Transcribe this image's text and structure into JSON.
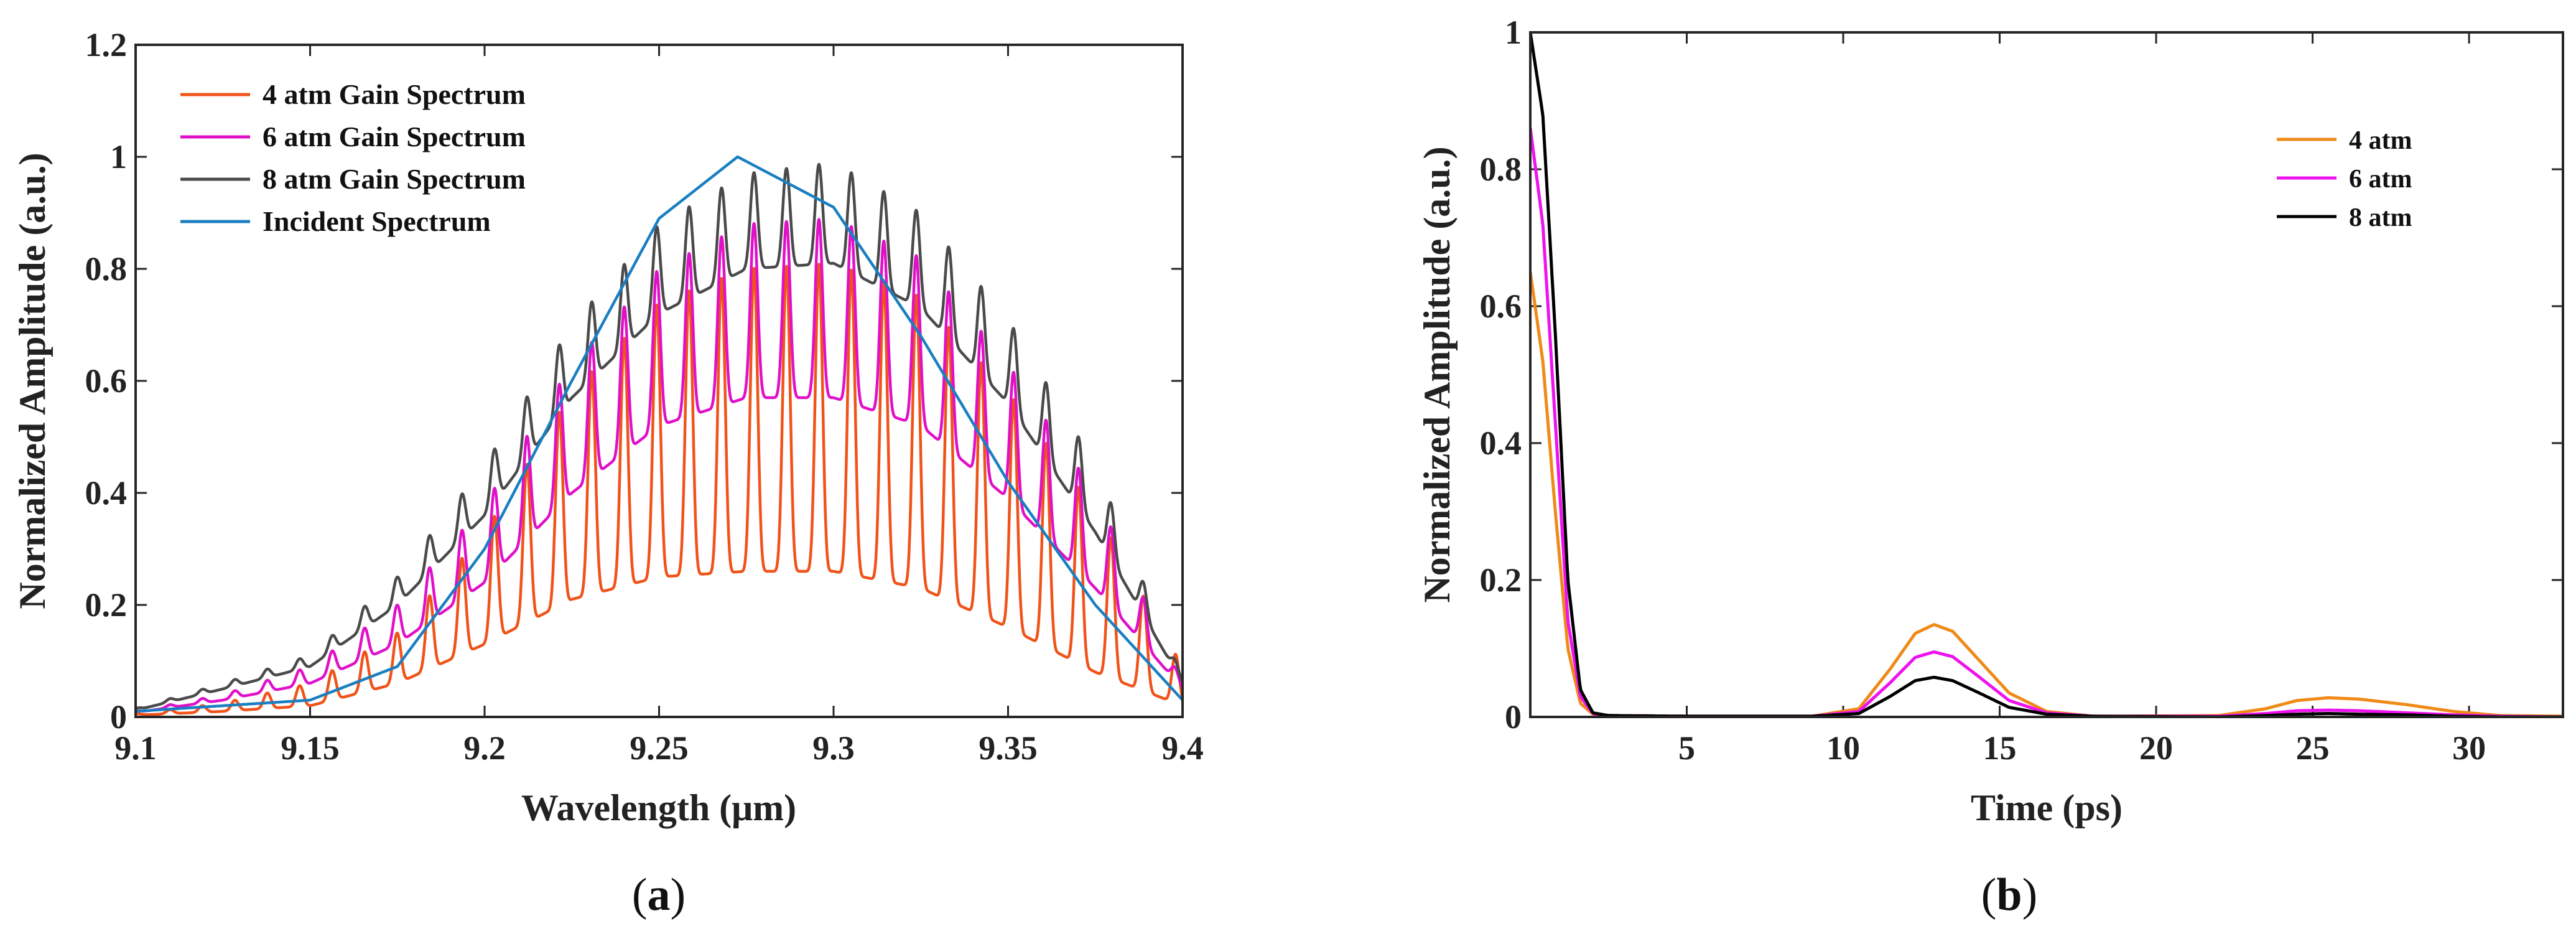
{
  "chart_data": [
    {
      "id": "a",
      "type": "line",
      "caption": {
        "open": "(",
        "letter": "a",
        "close": ")"
      },
      "xlabel": "Wavelength (μm)",
      "ylabel": "Normalized Amplitude (a.u.)",
      "xlim": [
        9.1,
        9.4
      ],
      "ylim": [
        0,
        1.2
      ],
      "xticks": [
        9.1,
        9.15,
        9.2,
        9.25,
        9.3,
        9.35,
        9.4
      ],
      "xtick_labels": [
        "9.1",
        "9.15",
        "9.2",
        "9.25",
        "9.3",
        "9.35",
        "9.4"
      ],
      "yticks": [
        0,
        0.2,
        0.4,
        0.6,
        0.8,
        1,
        1.2
      ],
      "ytick_labels": [
        "0",
        "0.2",
        "0.4",
        "0.6",
        "0.8",
        "1",
        "1.2"
      ],
      "legend_position": "top-left",
      "series": [
        {
          "name": "4 atm Gain Spectrum",
          "color": "#f0531a",
          "comb": true,
          "x": [
            9.1,
            9.125,
            9.15,
            9.175,
            9.2,
            9.225,
            9.25,
            9.275,
            9.3,
            9.325,
            9.35,
            9.375,
            9.4
          ],
          "peak_envelope": [
            0.005,
            0.025,
            0.06,
            0.15,
            0.33,
            0.58,
            0.74,
            0.8,
            0.81,
            0.75,
            0.58,
            0.37,
            0.09
          ],
          "valley_envelope": [
            0.003,
            0.01,
            0.02,
            0.06,
            0.13,
            0.21,
            0.25,
            0.26,
            0.26,
            0.23,
            0.16,
            0.08,
            0.02
          ]
        },
        {
          "name": "6 atm Gain Spectrum",
          "color": "#e010c8",
          "comb": true,
          "x": [
            9.1,
            9.125,
            9.15,
            9.175,
            9.2,
            9.225,
            9.25,
            9.275,
            9.3,
            9.325,
            9.35,
            9.375,
            9.4
          ],
          "peak_envelope": [
            0.01,
            0.04,
            0.09,
            0.2,
            0.38,
            0.63,
            0.8,
            0.88,
            0.89,
            0.82,
            0.63,
            0.4,
            0.06
          ],
          "valley_envelope": [
            0.008,
            0.03,
            0.06,
            0.13,
            0.24,
            0.4,
            0.52,
            0.57,
            0.57,
            0.52,
            0.39,
            0.23,
            0.05
          ]
        },
        {
          "name": "8 atm Gain Spectrum",
          "color": "#4a4a4a",
          "comb": true,
          "x": [
            9.1,
            9.125,
            9.15,
            9.175,
            9.2,
            9.225,
            9.25,
            9.275,
            9.3,
            9.325,
            9.35,
            9.375,
            9.4
          ],
          "peak_envelope": [
            0.015,
            0.06,
            0.11,
            0.25,
            0.45,
            0.7,
            0.88,
            0.97,
            0.99,
            0.9,
            0.71,
            0.45,
            0.07
          ],
          "valley_envelope": [
            0.012,
            0.05,
            0.09,
            0.2,
            0.36,
            0.57,
            0.72,
            0.8,
            0.81,
            0.73,
            0.56,
            0.33,
            0.06
          ]
        },
        {
          "name": "Incident Spectrum",
          "color": "#1a7fc1",
          "comb": false,
          "x": [
            9.1,
            9.125,
            9.15,
            9.175,
            9.2,
            9.225,
            9.25,
            9.2725,
            9.3,
            9.325,
            9.35,
            9.375,
            9.4
          ],
          "y": [
            0.01,
            0.02,
            0.03,
            0.09,
            0.3,
            0.6,
            0.89,
            1.0,
            0.91,
            0.68,
            0.42,
            0.2,
            0.03
          ]
        }
      ]
    },
    {
      "id": "b",
      "type": "line",
      "caption": {
        "open": "(",
        "letter": "b",
        "close": ")"
      },
      "xlabel": "Time (ps)",
      "ylabel": "Normalized Amplitude (a.u.)",
      "xlim": [
        0,
        33
      ],
      "ylim": [
        0,
        1
      ],
      "xticks": [
        5,
        10,
        15,
        20,
        25,
        30
      ],
      "xtick_labels": [
        "5",
        "10",
        "15",
        "20",
        "25",
        "30"
      ],
      "yticks": [
        0,
        0.2,
        0.4,
        0.6,
        0.8,
        1
      ],
      "ytick_labels": [
        "0",
        "0.2",
        "0.4",
        "0.6",
        "0.8",
        "1"
      ],
      "legend_position": "top-right",
      "series": [
        {
          "name": "4 atm",
          "color": "#ef8a17",
          "x": [
            0,
            0.4,
            0.8,
            1.2,
            1.6,
            2.0,
            2.5,
            5,
            9,
            10.5,
            11.5,
            12.3,
            12.9,
            13.5,
            14.3,
            15.3,
            16.5,
            18,
            22,
            23.5,
            24.5,
            25.5,
            26.5,
            28,
            29.5,
            31,
            33
          ],
          "y": [
            0.65,
            0.52,
            0.3,
            0.1,
            0.02,
            0.004,
            0.002,
            0.001,
            0.001,
            0.012,
            0.07,
            0.122,
            0.135,
            0.125,
            0.085,
            0.035,
            0.008,
            0.001,
            0.002,
            0.012,
            0.024,
            0.028,
            0.026,
            0.018,
            0.008,
            0.002,
            0.001
          ]
        },
        {
          "name": "6 atm",
          "color": "#ee12ee",
          "x": [
            0,
            0.4,
            0.8,
            1.2,
            1.6,
            2.0,
            2.5,
            5,
            9,
            10.5,
            11.5,
            12.3,
            12.9,
            13.5,
            14.3,
            15.3,
            16.5,
            18,
            22,
            23.5,
            24.5,
            25.5,
            26.5,
            28,
            29.5,
            31,
            33
          ],
          "y": [
            0.86,
            0.72,
            0.43,
            0.14,
            0.03,
            0.005,
            0.002,
            0.001,
            0.001,
            0.008,
            0.05,
            0.087,
            0.095,
            0.088,
            0.06,
            0.024,
            0.006,
            0.001,
            0.001,
            0.005,
            0.009,
            0.01,
            0.009,
            0.006,
            0.003,
            0.001,
            0.0
          ]
        },
        {
          "name": "8 atm",
          "color": "#000000",
          "x": [
            0,
            0.4,
            0.8,
            1.2,
            1.6,
            2.0,
            2.5,
            5,
            9,
            10.5,
            11.5,
            12.3,
            12.9,
            13.5,
            14.3,
            15.3,
            16.5,
            18,
            22,
            23.5,
            24.5,
            25.5,
            26.5,
            28,
            29.5,
            31,
            33
          ],
          "y": [
            1.0,
            0.88,
            0.56,
            0.2,
            0.04,
            0.006,
            0.002,
            0.001,
            0.001,
            0.005,
            0.03,
            0.053,
            0.058,
            0.053,
            0.036,
            0.014,
            0.004,
            0.001,
            0.0,
            0.002,
            0.004,
            0.005,
            0.004,
            0.003,
            0.001,
            0.0,
            0.0
          ]
        }
      ]
    }
  ]
}
